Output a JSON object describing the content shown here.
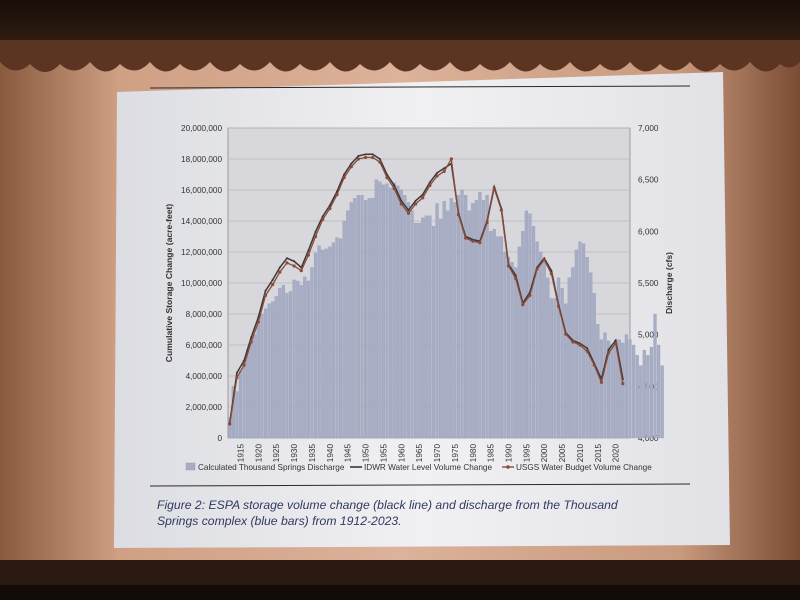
{
  "chart_data": {
    "type": "bar+line",
    "xlabel": "",
    "ylabel": "Cumulative Storage Change (acre-feet)",
    "y2label": "Discharge (cfs)",
    "ylim": [
      0,
      20000000
    ],
    "y2lim": [
      4000,
      7000
    ],
    "y_ticks": [
      "0",
      "2,000,000",
      "4,000,000",
      "6,000,000",
      "8,000,000",
      "10,000,000",
      "12,000,000",
      "14,000,000",
      "16,000,000",
      "18,000,000",
      "20,000,000"
    ],
    "y2_ticks": [
      "4,000",
      "4,500",
      "5,000",
      "5,500",
      "6,000",
      "6,500",
      "7,000"
    ],
    "x_ticks": [
      "1915",
      "1920",
      "1925",
      "1930",
      "1935",
      "1940",
      "1945",
      "1950",
      "1955",
      "1960",
      "1965",
      "1970",
      "1975",
      "1980",
      "1985",
      "1990",
      "1995",
      "2000",
      "2005",
      "2010",
      "2015",
      "2020"
    ],
    "grid": true,
    "legend_position": "bottom",
    "series": [
      {
        "name": "Calculated Thousand Springs Discharge",
        "kind": "bar",
        "axis": "y2",
        "color": "#a7adc4",
        "x_start": 1912,
        "values": [
          4200,
          4500,
          4450,
          4650,
          4750,
          4850,
          4950,
          5000,
          5130,
          5200,
          5250,
          5300,
          5320,
          5370,
          5450,
          5480,
          5400,
          5420,
          5530,
          5520,
          5480,
          5560,
          5520,
          5650,
          5790,
          5860,
          5820,
          5830,
          5850,
          5890,
          5940,
          5930,
          6100,
          6200,
          6280,
          6320,
          6350,
          6350,
          6300,
          6320,
          6320,
          6500,
          6480,
          6450,
          6460,
          6420,
          6470,
          6440,
          6400,
          6350,
          6280,
          6200,
          6080,
          6080,
          6130,
          6150,
          6150,
          6050,
          6270,
          6120,
          6290,
          6200,
          6320,
          6280,
          6350,
          6400,
          6350,
          6200,
          6270,
          6300,
          6380,
          6300,
          6350,
          6000,
          6020,
          5950,
          5950,
          5800,
          5750,
          5700,
          5650,
          5850,
          6000,
          6200,
          6170,
          6050,
          5900,
          5800,
          5700,
          5550,
          5350,
          5350,
          5550,
          5450,
          5300,
          5550,
          5650,
          5820,
          5900,
          5880,
          5750,
          5600,
          5400,
          5100,
          4950,
          5020,
          4940,
          4900,
          4950,
          4950,
          4920,
          5000,
          4950,
          4900,
          4800,
          4700,
          4850,
          4800,
          4880,
          5200,
          4900,
          4700
        ]
      },
      {
        "name": "IDWR Water Level Volume Change",
        "kind": "line",
        "axis": "y",
        "color": "#3d3838",
        "x": [
          1912,
          1914,
          1916,
          1918,
          1920,
          1922,
          1924,
          1926,
          1928,
          1930,
          1932,
          1934,
          1936,
          1938,
          1940,
          1942,
          1944,
          1946,
          1948,
          1950,
          1952,
          1954,
          1956,
          1958,
          1960,
          1962,
          1964,
          1966,
          1968,
          1970,
          1972,
          1974,
          1976,
          1978,
          1980,
          1982,
          1984,
          1986,
          1988,
          1990,
          1992,
          1994,
          1996,
          1998,
          2000,
          2002,
          2004,
          2006,
          2008,
          2010,
          2012,
          2014,
          2016,
          2018,
          2020,
          2022
        ],
        "values": [
          1000000,
          4200000,
          5000000,
          6500000,
          7800000,
          9500000,
          10200000,
          11000000,
          11600000,
          11400000,
          11000000,
          12100000,
          13300000,
          14300000,
          15000000,
          15900000,
          17000000,
          17700000,
          18200000,
          18300000,
          18300000,
          18000000,
          17000000,
          16300000,
          15300000,
          14700000,
          15300000,
          15700000,
          16500000,
          17100000,
          17400000,
          17700000,
          14500000,
          13000000,
          12800000,
          12700000,
          14000000,
          16200000,
          14800000,
          11200000,
          10500000,
          8700000,
          9400000,
          11000000,
          11600000,
          10800000,
          8600000,
          6800000,
          6300000,
          6100000,
          5800000,
          4800000,
          3800000,
          5700000,
          6300000,
          3800000
        ]
      },
      {
        "name": "USGS Water Budget Volume Change",
        "kind": "line",
        "axis": "y",
        "color": "#8a4b38",
        "x": [
          1912,
          1914,
          1916,
          1918,
          1920,
          1922,
          1924,
          1926,
          1928,
          1930,
          1932,
          1934,
          1936,
          1938,
          1940,
          1942,
          1944,
          1946,
          1948,
          1950,
          1952,
          1954,
          1956,
          1958,
          1960,
          1962,
          1964,
          1966,
          1968,
          1970,
          1972,
          1974,
          1976,
          1978,
          1980,
          1982,
          1984,
          1986,
          1988,
          1990,
          1992,
          1994,
          1996,
          1998,
          2000,
          2002,
          2004,
          2006,
          2008,
          2010,
          2012,
          2014,
          2016,
          2018,
          2020,
          2022
        ],
        "values": [
          900000,
          3900000,
          4700000,
          6200000,
          7500000,
          9200000,
          9900000,
          10700000,
          11300000,
          11100000,
          10800000,
          11800000,
          13000000,
          14100000,
          14800000,
          15700000,
          16800000,
          17500000,
          18000000,
          18100000,
          18100000,
          17800000,
          16800000,
          16100000,
          15100000,
          14500000,
          15100000,
          15500000,
          16300000,
          16900000,
          17200000,
          18000000,
          14400000,
          12900000,
          12700000,
          12600000,
          13900000,
          16100000,
          14700000,
          11100000,
          10300000,
          8600000,
          9200000,
          10900000,
          11500000,
          10600000,
          8500000,
          6700000,
          6200000,
          6000000,
          5600000,
          4700000,
          3600000,
          5500000,
          6100000,
          3500000
        ]
      }
    ]
  },
  "caption": {
    "line1": "Figure 2: ESPA storage volume change (black line) and discharge from the Thousand",
    "line2": "Springs complex (blue bars) from 1912-2023."
  }
}
